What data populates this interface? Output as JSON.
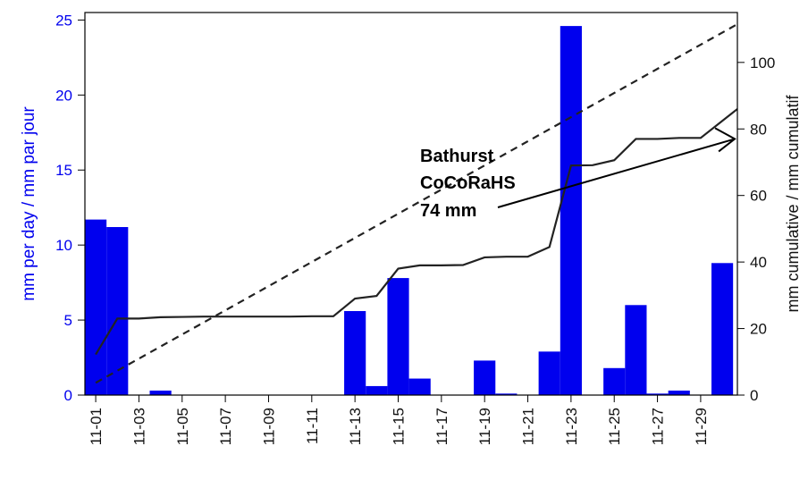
{
  "chart_data": {
    "type": "bar",
    "days": [
      "11-01",
      "11-02",
      "11-03",
      "11-04",
      "11-05",
      "11-06",
      "11-07",
      "11-08",
      "11-09",
      "11-10",
      "11-11",
      "11-12",
      "11-13",
      "11-14",
      "11-15",
      "11-16",
      "11-17",
      "11-18",
      "11-19",
      "11-20",
      "11-21",
      "11-22",
      "11-23",
      "11-24",
      "11-25",
      "11-26",
      "11-27",
      "11-28",
      "11-29",
      "11-30"
    ],
    "x_tick_labels": [
      "11-01",
      "11-03",
      "11-05",
      "11-07",
      "11-09",
      "11-11",
      "11-13",
      "11-15",
      "11-17",
      "11-19",
      "11-21",
      "11-23",
      "11-25",
      "11-27",
      "11-29"
    ],
    "daily_precip": [
      11.7,
      11.2,
      0.0,
      0.3,
      0.0,
      0.0,
      0.0,
      0.0,
      0.0,
      0.0,
      0.0,
      0.0,
      5.6,
      0.6,
      7.8,
      1.1,
      0.0,
      0.0,
      2.3,
      0.1,
      0.0,
      2.9,
      24.6,
      0.0,
      1.8,
      6.0,
      0.1,
      0.3,
      0.0,
      8.8
    ],
    "cumulative": [
      12.2,
      23.0,
      23.0,
      23.4,
      23.5,
      23.6,
      23.6,
      23.6,
      23.6,
      23.6,
      23.7,
      23.7,
      29.0,
      29.8,
      38.0,
      39.0,
      39.0,
      39.1,
      41.4,
      41.6,
      41.6,
      44.5,
      69.0,
      69.1,
      70.6,
      77.0,
      77.0,
      77.3,
      77.3,
      86.0
    ],
    "normal_cumulative": [
      3.7,
      111.5
    ],
    "y_left_label": "mm per day / mm par jour",
    "y_right_label": "mm cumulative / mm cumulatif",
    "y_left_ticks": [
      0,
      5,
      10,
      15,
      20,
      25
    ],
    "y_right_ticks": [
      0,
      20,
      40,
      60,
      80,
      100
    ],
    "ylim_left": [
      0,
      25.5
    ],
    "ylim_right": [
      0,
      115
    ],
    "annotation": [
      "Bathurst",
      "CoCoRaHS",
      "74 mm"
    ],
    "annotation_target": {
      "day": 30,
      "cumulative": 77
    },
    "colors": {
      "bars": "#0000ee",
      "cumulative_line": "#222222",
      "normal_line": "#222222",
      "left_axis": "#0000ee"
    }
  }
}
